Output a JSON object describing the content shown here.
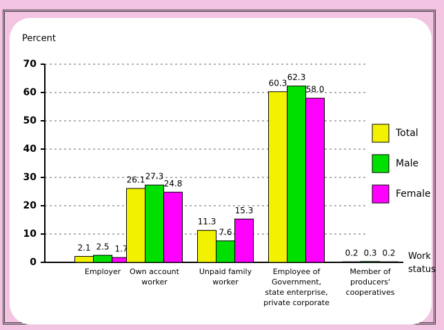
{
  "chart_data": {
    "type": "bar",
    "y_label": "Percent",
    "x_label": "Work\nstatus",
    "categories": [
      "Employer",
      "Own account\nworker",
      "Unpaid family\nworker",
      "Employee of\nGovernment,\nstate enterprise,\nprivate corporate",
      "Member of\nproducers'\ncooperatives"
    ],
    "series": [
      {
        "name": "Total",
        "color": "#f2f200",
        "values": [
          2.1,
          26.1,
          11.3,
          60.3,
          0.2
        ],
        "value_labels": [
          "2.1",
          "26.1",
          "11.3",
          "60.3",
          "0.2"
        ]
      },
      {
        "name": "Male",
        "color": "#00e000",
        "values": [
          2.5,
          27.3,
          7.6,
          62.3,
          0.3
        ],
        "value_labels": [
          "2.5",
          "27.3",
          "7.6",
          "62.3",
          "0.3"
        ]
      },
      {
        "name": "Female",
        "color": "#ff00ff",
        "values": [
          1.7,
          24.8,
          15.3,
          58.0,
          0.2
        ],
        "value_labels": [
          "1.7",
          "24.8",
          "15.3",
          "58.0",
          "0.2"
        ]
      }
    ],
    "ylim": [
      0,
      70
    ],
    "yticks": [
      0,
      10,
      20,
      30,
      40,
      50,
      60,
      70
    ],
    "grid": true,
    "legend": "right"
  }
}
